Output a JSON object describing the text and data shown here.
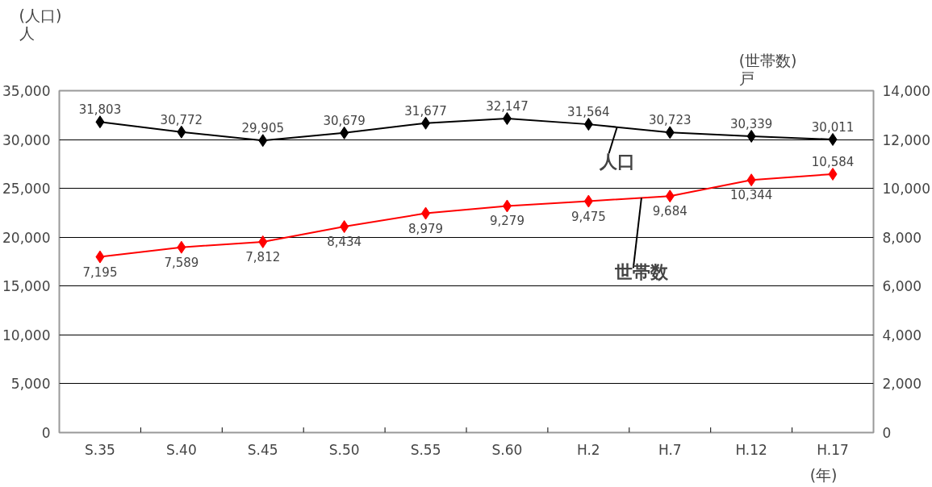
{
  "chart_data": {
    "type": "line",
    "categories": [
      "S.35",
      "S.40",
      "S.45",
      "S.50",
      "S.55",
      "S.60",
      "H.2",
      "H.7",
      "H.12",
      "H.17"
    ],
    "series": [
      {
        "name": "人口",
        "color": "#000000",
        "values": [
          31803,
          30772,
          29905,
          30679,
          31677,
          32147,
          31564,
          30723,
          30339,
          30011
        ],
        "value_labels": [
          "31,803",
          "30,772",
          "29,905",
          "30,679",
          "31,677",
          "32,147",
          "31,564",
          "30,723",
          "30,339",
          "30,011"
        ]
      },
      {
        "name": "世帯数",
        "color": "#ff0000",
        "axis": "y2",
        "values": [
          7195,
          7589,
          7812,
          8434,
          8979,
          9279,
          9475,
          9684,
          10344,
          10584
        ],
        "value_labels": [
          "7,195",
          "7,589",
          "7,812",
          "8,434",
          "8,979",
          "9,279",
          "9,475",
          "9,684",
          "10,344",
          "10,584"
        ]
      }
    ],
    "ylabel": "(人口)\n人",
    "y2label": "(世帯数)\n戸",
    "xlabel": "(年)",
    "ylim": [
      0,
      35000
    ],
    "yticks": [
      {
        "value": 0,
        "label": "0"
      },
      {
        "value": 5000,
        "label": "5,000"
      },
      {
        "value": 10000,
        "label": "10,000"
      },
      {
        "value": 15000,
        "label": "15,000"
      },
      {
        "value": 20000,
        "label": "20,000"
      },
      {
        "value": 25000,
        "label": "25,000"
      },
      {
        "value": 30000,
        "label": "30,000"
      },
      {
        "value": 35000,
        "label": "35,000"
      }
    ],
    "y2lim": [
      0,
      14000
    ],
    "y2ticks": [
      {
        "value": 0,
        "label": "0"
      },
      {
        "value": 2000,
        "label": "2,000"
      },
      {
        "value": 4000,
        "label": "4,000"
      },
      {
        "value": 6000,
        "label": "6,000"
      },
      {
        "value": 8000,
        "label": "8,000"
      },
      {
        "value": 10000,
        "label": "10,000"
      },
      {
        "value": 12000,
        "label": "12,000"
      },
      {
        "value": 14000,
        "label": "14,000"
      }
    ],
    "grid": "y",
    "marker": "diamond",
    "line_style": "solid"
  }
}
